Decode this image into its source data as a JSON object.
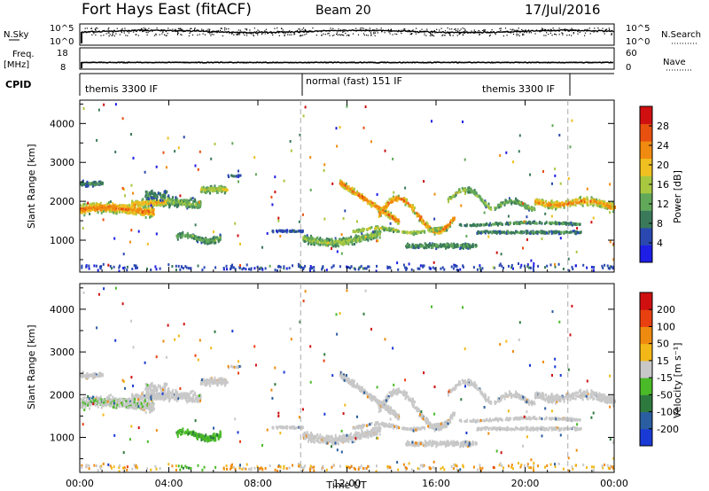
{
  "header": {
    "radar_title": "Fort Hays East (fitACF)",
    "beam": "Beam 20",
    "date": "17/Jul/2016"
  },
  "colors": {
    "power_scale": [
      "#1e1ee6",
      "#2a48b0",
      "#3a7a5a",
      "#62a85a",
      "#a8c840",
      "#f0c020",
      "#f08a10",
      "#e85010",
      "#d01010"
    ],
    "velocity_scale": [
      "#1a3ad6",
      "#2a5ea0",
      "#2e7a3e",
      "#4aba28",
      "#c8c8c8",
      "#f2b818",
      "#ee8a10",
      "#e84010",
      "#d01010"
    ],
    "trace": "#000000",
    "divider": "#aaaaaa"
  },
  "noise_panel": {
    "left_label": "N.Sky",
    "right_label": "N.Search",
    "left_ticks": [
      "10^5",
      "10^0"
    ],
    "right_ticks": [
      "10^5",
      "10^0"
    ]
  },
  "freq_panel": {
    "left_label_line1": "Freq.",
    "left_label_line2": "[MHz]",
    "right_label": "Nave",
    "left_ticks": [
      "18",
      "8"
    ],
    "right_ticks": [
      "60",
      "0"
    ]
  },
  "cpid_panel": {
    "label": "CPID",
    "segments": [
      "themis 3300 IF",
      "normal (fast) 151 IF",
      "themis 3300 IF"
    ]
  },
  "chart_data": [
    {
      "type": "heatmap",
      "title": "",
      "xlabel": "Time UT",
      "ylabel": "Slant Range [km]",
      "x_ticks": [
        "00:00",
        "04:00",
        "08:00",
        "12:00",
        "16:00",
        "20:00",
        "00:00"
      ],
      "y_ticks": [
        "1000",
        "2000",
        "3000",
        "4000"
      ],
      "x_range_hours": [
        0,
        24
      ],
      "y_range_km": [
        180,
        4600
      ],
      "colorbar_label": "Power [dB]",
      "colorbar_ticks": [
        "4",
        "8",
        "12",
        "16",
        "20",
        "24",
        "28"
      ],
      "colorbar_range": [
        0,
        32
      ],
      "mode_change_hours": [
        9.92,
        21.92
      ]
    },
    {
      "type": "heatmap",
      "title": "",
      "xlabel": "Time UT",
      "ylabel": "Slant Range [km]",
      "x_ticks": [
        "00:00",
        "04:00",
        "08:00",
        "12:00",
        "16:00",
        "20:00",
        "00:00"
      ],
      "y_ticks": [
        "1000",
        "2000",
        "3000",
        "4000"
      ],
      "x_range_hours": [
        0,
        24
      ],
      "y_range_km": [
        180,
        4600
      ],
      "colorbar_label": "Velocity [m s⁻¹]",
      "colorbar_ticks": [
        "200",
        "100",
        "50",
        "15",
        "-15",
        "-50",
        "-100",
        "-200"
      ],
      "colorbar_range": [
        -300,
        300
      ],
      "mode_change_hours": [
        9.92,
        21.92
      ]
    }
  ],
  "bottom_axis": {
    "label": "Time UT",
    "ticks": [
      "00:00",
      "04:00",
      "08:00",
      "12:00",
      "16:00",
      "20:00",
      "00:00"
    ]
  }
}
